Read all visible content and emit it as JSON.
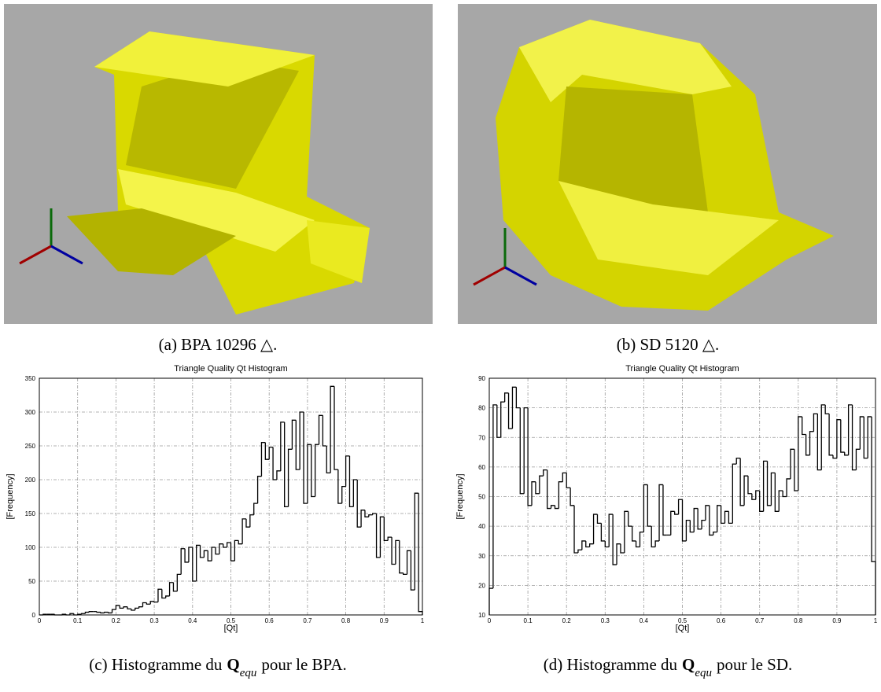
{
  "figures": [
    {
      "caption": "(a) BPA 10296 △."
    },
    {
      "caption": "(b) SD 5120 △."
    },
    {
      "caption": {
        "prefix": "(c) Histogramme du",
        "symbol": "Q",
        "subscript": "equ",
        "suffix": "pour le BPA."
      }
    },
    {
      "caption": {
        "prefix": "(d) Histogramme du",
        "symbol": "Q",
        "subscript": "equ",
        "suffix": "pour le SD."
      }
    }
  ],
  "chart_data": [
    {
      "type": "histogram",
      "title": "Triangle Quality Qt Histogram",
      "x_label": "[Qt]",
      "y_label": "[Frequency]",
      "color": "#000000",
      "grid": true,
      "bins": [
        0,
        0.01,
        0.02,
        0.03,
        0.04,
        0.05,
        0.06,
        0.07,
        0.08,
        0.09,
        0.1,
        0.11,
        0.12,
        0.13,
        0.14,
        0.15,
        0.16,
        0.17,
        0.18,
        0.19,
        0.2,
        0.21,
        0.22,
        0.23,
        0.24,
        0.25,
        0.26,
        0.27,
        0.28,
        0.29,
        0.3,
        0.31,
        0.32,
        0.33,
        0.34,
        0.35,
        0.36,
        0.37,
        0.38,
        0.39,
        0.4,
        0.41,
        0.42,
        0.43,
        0.44,
        0.45,
        0.46,
        0.47,
        0.48,
        0.49,
        0.5,
        0.51,
        0.52,
        0.53,
        0.54,
        0.55,
        0.56,
        0.57,
        0.58,
        0.59,
        0.6,
        0.61,
        0.62,
        0.63,
        0.64,
        0.65,
        0.66,
        0.67,
        0.68,
        0.69,
        0.7,
        0.71,
        0.72,
        0.73,
        0.74,
        0.75,
        0.76,
        0.77,
        0.78,
        0.79,
        0.8,
        0.81,
        0.82,
        0.83,
        0.84,
        0.85,
        0.86,
        0.87,
        0.88,
        0.89,
        0.9,
        0.91,
        0.92,
        0.93,
        0.94,
        0.95,
        0.96,
        0.97,
        0.98,
        0.99,
        1
      ],
      "counts": [
        0,
        1,
        1,
        1,
        0,
        0,
        1,
        0,
        2,
        0,
        1,
        2,
        4,
        5,
        5,
        4,
        3,
        4,
        3,
        8,
        14,
        10,
        12,
        9,
        7,
        10,
        12,
        18,
        16,
        20,
        19,
        38,
        25,
        28,
        48,
        35,
        60,
        98,
        78,
        100,
        50,
        103,
        85,
        95,
        80,
        100,
        90,
        105,
        100,
        107,
        80,
        110,
        105,
        142,
        130,
        148,
        165,
        205,
        255,
        230,
        248,
        200,
        213,
        285,
        160,
        245,
        288,
        215,
        300,
        165,
        252,
        175,
        252,
        295,
        250,
        210,
        338,
        215,
        165,
        190,
        235,
        160,
        200,
        130,
        155,
        145,
        148,
        150,
        85,
        145,
        110,
        115,
        75,
        110,
        62,
        60,
        95,
        37,
        180,
        5
      ],
      "xlim": [
        0,
        1
      ],
      "ylim": [
        0,
        350
      ],
      "xticks": [
        0,
        0.1,
        0.2,
        0.3,
        0.4,
        0.5,
        0.6,
        0.7,
        0.8,
        0.9,
        1
      ],
      "yticks": [
        0,
        50,
        100,
        150,
        200,
        250,
        300,
        350
      ]
    },
    {
      "type": "histogram",
      "title": "Triangle Quality Qt Histogram",
      "x_label": "[Qt]",
      "y_label": "[Frequency]",
      "color": "#000000",
      "grid": true,
      "bins": [
        0,
        0.01,
        0.02,
        0.03,
        0.04,
        0.05,
        0.06,
        0.07,
        0.08,
        0.09,
        0.1,
        0.11,
        0.12,
        0.13,
        0.14,
        0.15,
        0.16,
        0.17,
        0.18,
        0.19,
        0.2,
        0.21,
        0.22,
        0.23,
        0.24,
        0.25,
        0.26,
        0.27,
        0.28,
        0.29,
        0.3,
        0.31,
        0.32,
        0.33,
        0.34,
        0.35,
        0.36,
        0.37,
        0.38,
        0.39,
        0.4,
        0.41,
        0.42,
        0.43,
        0.44,
        0.45,
        0.46,
        0.47,
        0.48,
        0.49,
        0.5,
        0.51,
        0.52,
        0.53,
        0.54,
        0.55,
        0.56,
        0.57,
        0.58,
        0.59,
        0.6,
        0.61,
        0.62,
        0.63,
        0.64,
        0.65,
        0.66,
        0.67,
        0.68,
        0.69,
        0.7,
        0.71,
        0.72,
        0.73,
        0.74,
        0.75,
        0.76,
        0.77,
        0.78,
        0.79,
        0.8,
        0.81,
        0.82,
        0.83,
        0.84,
        0.85,
        0.86,
        0.87,
        0.88,
        0.89,
        0.9,
        0.91,
        0.92,
        0.93,
        0.94,
        0.95,
        0.96,
        0.97,
        0.98,
        0.99,
        1
      ],
      "counts": [
        19,
        81,
        70,
        82,
        85,
        73,
        87,
        80,
        51,
        80,
        47,
        55,
        51,
        57,
        59,
        46,
        47,
        46,
        55,
        58,
        53,
        47,
        31,
        32,
        35,
        33,
        34,
        44,
        41,
        35,
        33,
        44,
        27,
        34,
        31,
        45,
        40,
        35,
        33,
        38,
        54,
        40,
        33,
        35,
        54,
        37,
        37,
        45,
        44,
        49,
        35,
        42,
        38,
        46,
        39,
        42,
        47,
        37,
        38,
        47,
        41,
        45,
        41,
        61,
        63,
        47,
        57,
        51,
        49,
        52,
        45,
        62,
        47,
        58,
        45,
        52,
        50,
        56,
        66,
        52,
        77,
        71,
        64,
        72,
        78,
        59,
        81,
        78,
        64,
        63,
        76,
        65,
        64,
        81,
        59,
        66,
        77,
        63,
        77,
        28
      ],
      "xlim": [
        0,
        1
      ],
      "ylim": [
        10,
        90
      ],
      "xticks": [
        0,
        0.1,
        0.2,
        0.3,
        0.4,
        0.5,
        0.6,
        0.7,
        0.8,
        0.9,
        1
      ],
      "yticks": [
        10,
        20,
        30,
        40,
        50,
        60,
        70,
        80,
        90
      ]
    }
  ]
}
